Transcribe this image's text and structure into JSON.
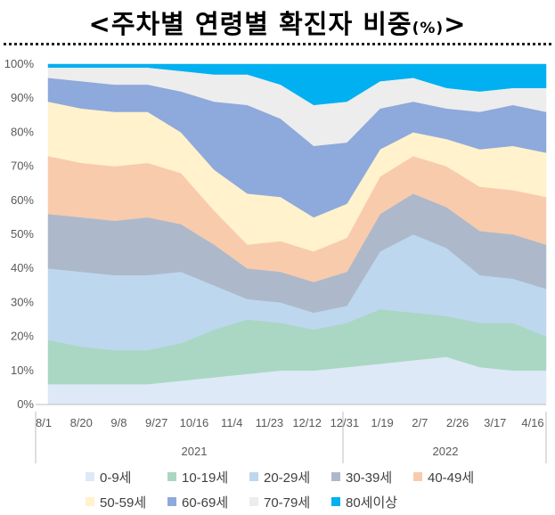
{
  "title": {
    "main": "<주차별 연령별 확진자 비중",
    "unit": "(%)",
    "end": ">"
  },
  "chart_data": {
    "type": "area",
    "stacked": true,
    "normalized_percent": true,
    "y_ticks": [
      "0%",
      "10%",
      "20%",
      "30%",
      "40%",
      "50%",
      "60%",
      "70%",
      "80%",
      "90%",
      "100%"
    ],
    "ylim": [
      0,
      100
    ],
    "x_ticks": [
      "8/1",
      "8/20",
      "9/8",
      "9/27",
      "10/16",
      "11/4",
      "11/23",
      "12/12",
      "12/31",
      "1/19",
      "2/7",
      "2/26",
      "3/17",
      "4/16"
    ],
    "years": [
      "2021",
      "2022"
    ],
    "legend_position": "bottom",
    "series": [
      {
        "name": "0-9세",
        "color": "#DDE9F6",
        "values": [
          6,
          6,
          6,
          6,
          7,
          8,
          9,
          10,
          10,
          11,
          12,
          13,
          14,
          11,
          10,
          10
        ]
      },
      {
        "name": "10-19세",
        "color": "#A9D7C3",
        "values": [
          13,
          11,
          10,
          10,
          11,
          14,
          16,
          14,
          12,
          13,
          16,
          14,
          12,
          13,
          14,
          10
        ]
      },
      {
        "name": "20-29세",
        "color": "#BDD7EE",
        "values": [
          21,
          22,
          22,
          22,
          21,
          13,
          6,
          6,
          5,
          5,
          17,
          23,
          20,
          14,
          13,
          14
        ]
      },
      {
        "name": "30-39세",
        "color": "#ADB9CA",
        "values": [
          16,
          16,
          16,
          17,
          14,
          12,
          9,
          9,
          9,
          10,
          11,
          12,
          12,
          13,
          13,
          13
        ]
      },
      {
        "name": "40-49세",
        "color": "#F8CBAD",
        "values": [
          17,
          16,
          16,
          16,
          15,
          10,
          7,
          9,
          9,
          10,
          11,
          11,
          12,
          13,
          13,
          14
        ]
      },
      {
        "name": "50-59세",
        "color": "#FFF2CC",
        "values": [
          16,
          16,
          16,
          15,
          12,
          12,
          15,
          13,
          10,
          10,
          8,
          7,
          8,
          11,
          13,
          13
        ]
      },
      {
        "name": "60-69세",
        "color": "#8EA9DB",
        "values": [
          7,
          8,
          8,
          8,
          12,
          20,
          26,
          23,
          21,
          18,
          12,
          9,
          9,
          11,
          12,
          12
        ]
      },
      {
        "name": "70-79세",
        "color": "#EDEDED",
        "values": [
          3,
          4,
          5,
          5,
          6,
          8,
          9,
          10,
          12,
          12,
          8,
          7,
          6,
          6,
          5,
          7
        ]
      },
      {
        "name": "80세이상",
        "color": "#00B0F0",
        "values": [
          1,
          1,
          1,
          1,
          2,
          3,
          3,
          6,
          12,
          11,
          5,
          4,
          7,
          8,
          7,
          7
        ]
      }
    ]
  }
}
